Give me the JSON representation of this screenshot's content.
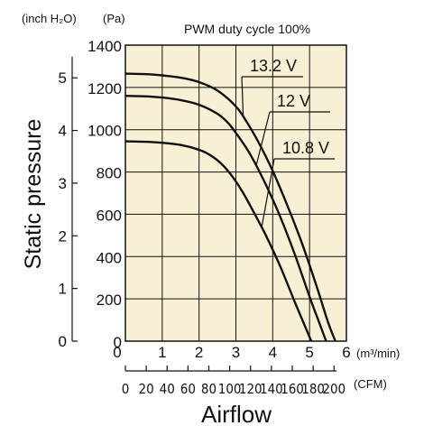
{
  "chart_data": {
    "type": "line",
    "title": "PWM duty cycle 100%",
    "xlabel": "Airflow",
    "ylabel": "Static pressure",
    "x_unit_primary": "(m³/min)",
    "x_unit_secondary": "(CFM)",
    "y_unit_primary": "(Pa)",
    "y_unit_secondary": "(inch H₂O)",
    "xlim": [
      0,
      6
    ],
    "ylim": [
      0,
      1400
    ],
    "x_ticks": [
      "0",
      "1",
      "2",
      "3",
      "4",
      "5",
      "6"
    ],
    "y_ticks": [
      "0",
      "200",
      "400",
      "600",
      "800",
      "1000",
      "1200",
      "1400"
    ],
    "cfm_ticks": [
      "0",
      "20",
      "40",
      "60",
      "80",
      "100",
      "120",
      "140",
      "160",
      "180",
      "200"
    ],
    "inch_ticks": [
      "0",
      "1",
      "2",
      "3",
      "4",
      "5"
    ],
    "grid": true,
    "background": "#f7f0d4",
    "line_color": "#111111",
    "series": [
      {
        "name": "13.2 V",
        "x": [
          0,
          0.5,
          1.0,
          1.5,
          2.0,
          2.5,
          3.0,
          3.3,
          3.6,
          4.0,
          4.4,
          4.8,
          5.2,
          5.5,
          5.7
        ],
        "y": [
          1265,
          1263,
          1257,
          1246,
          1225,
          1185,
          1110,
          1035,
          945,
          805,
          640,
          460,
          255,
          90,
          0
        ]
      },
      {
        "name": "12 V",
        "x": [
          0,
          0.5,
          1.0,
          1.5,
          2.0,
          2.5,
          2.8,
          3.1,
          3.4,
          3.8,
          4.2,
          4.6,
          5.0,
          5.3,
          5.45
        ],
        "y": [
          1160,
          1158,
          1152,
          1140,
          1118,
          1075,
          1030,
          960,
          880,
          745,
          590,
          410,
          210,
          70,
          0
        ]
      },
      {
        "name": "10.8 V",
        "x": [
          0,
          0.5,
          1.0,
          1.5,
          2.0,
          2.3,
          2.6,
          2.9,
          3.2,
          3.5,
          3.8,
          4.2,
          4.6,
          4.9,
          5.05
        ],
        "y": [
          945,
          943,
          938,
          928,
          905,
          880,
          840,
          780,
          700,
          605,
          505,
          355,
          185,
          60,
          0
        ]
      }
    ]
  }
}
